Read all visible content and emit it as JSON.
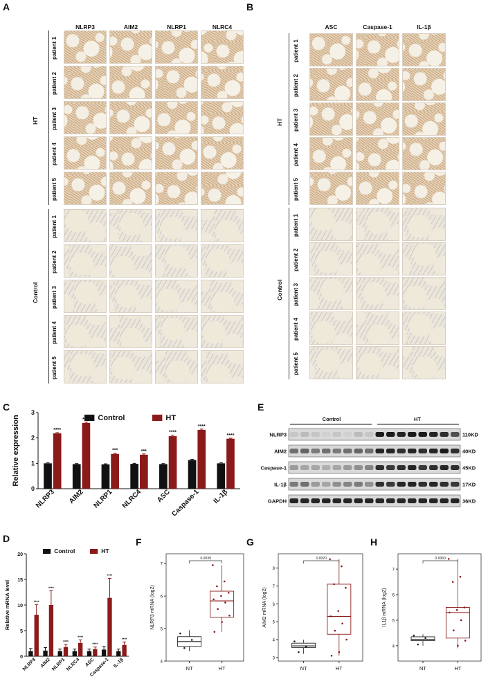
{
  "panels": {
    "a": "A",
    "b": "B",
    "c": "C",
    "d": "D",
    "e": "E",
    "f": "F",
    "g": "G",
    "h": "H"
  },
  "panel_a": {
    "columns": [
      "NLRP3",
      "AIM2",
      "NLRP1",
      "NLRC4"
    ],
    "groups": [
      "HT",
      "Control"
    ],
    "rows": [
      "patient 1",
      "patient 2",
      "patient 3",
      "patient 4",
      "patient 5"
    ]
  },
  "panel_b": {
    "columns": [
      "ASC",
      "Caspase-1",
      "IL-1β"
    ],
    "groups": [
      "HT",
      "Control"
    ],
    "rows": [
      "patient 1",
      "patient 2",
      "patient 3",
      "patient 4",
      "patient 5"
    ]
  },
  "panel_e": {
    "group_labels": [
      "Control",
      "HT"
    ],
    "rows": [
      {
        "name": "NLRP3",
        "size": "110KD"
      },
      {
        "name": "AIM2",
        "size": "40KD"
      },
      {
        "name": "Caspase-1",
        "size": "45KD"
      },
      {
        "name": "IL-1β",
        "size": "17KD"
      },
      {
        "name": "GAPDH",
        "size": "36KD"
      }
    ]
  },
  "chart_data": [
    {
      "id": "C",
      "type": "bar",
      "categories": [
        "NLRP3",
        "AIM2",
        "NLRP1",
        "NLRC4",
        "ASC",
        "Caspase-1",
        "IL-1β"
      ],
      "series": [
        {
          "name": "Control",
          "values": [
            1.0,
            0.97,
            0.96,
            0.98,
            0.97,
            1.13,
            1.0
          ],
          "errors": [
            0.02,
            0.02,
            0.02,
            0.02,
            0.02,
            0.03,
            0.02
          ],
          "color": "#111111"
        },
        {
          "name": "HT",
          "values": [
            2.18,
            2.59,
            1.37,
            1.34,
            2.07,
            2.32,
            1.97
          ],
          "errors": [
            0.03,
            0.03,
            0.03,
            0.03,
            0.04,
            0.03,
            0.02
          ],
          "color": "#8b1a1a"
        }
      ],
      "significance": [
        "****",
        "****",
        "***",
        "***",
        "****",
        "****",
        "****"
      ],
      "ylabel": "Relative expression",
      "ylim": [
        0,
        3
      ],
      "yticks": [
        0,
        1,
        2,
        3
      ]
    },
    {
      "id": "D",
      "type": "bar",
      "categories": [
        "NLRP3",
        "AIM2",
        "NLRP1",
        "NLRC4",
        "ASC",
        "Caspase-1",
        "IL-1β"
      ],
      "series": [
        {
          "name": "Control",
          "values": [
            1.0,
            1.1,
            1.0,
            1.0,
            1.0,
            1.3,
            1.0
          ],
          "errors": [
            0.5,
            0.6,
            0.4,
            0.4,
            0.4,
            0.6,
            0.4
          ],
          "color": "#111111"
        },
        {
          "name": "HT",
          "values": [
            8.1,
            10.0,
            1.8,
            2.6,
            1.4,
            11.4,
            2.2
          ],
          "errors": [
            2.0,
            2.8,
            0.5,
            0.6,
            0.4,
            3.8,
            0.6
          ],
          "color": "#8b1a1a"
        }
      ],
      "significance": [
        "****",
        "****",
        "****",
        "****",
        "****",
        "****",
        "****"
      ],
      "ylabel": "Relative mRNA level",
      "ylim": [
        0,
        20
      ],
      "yticks": [
        0,
        5,
        10,
        15,
        20
      ]
    },
    {
      "id": "F",
      "type": "box",
      "categories": [
        "NT",
        "HT"
      ],
      "ylabel": "NLRP3 mRNA (log2)",
      "pvalue": "0.0039",
      "ylim": [
        4,
        7.3
      ],
      "yticks": [
        4,
        5,
        6,
        7
      ],
      "boxes": [
        {
          "q1": 4.45,
          "median": 4.6,
          "q3": 4.75,
          "min": 4.3,
          "max": 4.95,
          "points": [
            4.85,
            4.65,
            4.4
          ],
          "color": "#222222"
        },
        {
          "q1": 5.35,
          "median": 5.85,
          "q3": 6.15,
          "min": 4.9,
          "max": 6.95,
          "points": [
            6.95,
            6.45,
            6.3,
            6.1,
            6.0,
            5.9,
            5.8,
            5.6,
            5.4,
            5.2,
            4.9
          ],
          "color": "#8b1a1a"
        }
      ]
    },
    {
      "id": "G",
      "type": "box",
      "categories": [
        "NT",
        "HT"
      ],
      "ylabel": "AIM2 mRNA (log2)",
      "pvalue": "0.0020",
      "ylim": [
        2.8,
        8.8
      ],
      "yticks": [
        3,
        4,
        5,
        6,
        7,
        8
      ],
      "boxes": [
        {
          "q1": 3.55,
          "median": 3.65,
          "q3": 3.8,
          "min": 3.2,
          "max": 4.0,
          "points": [
            3.9,
            3.6,
            3.3
          ],
          "color": "#222222"
        },
        {
          "q1": 4.3,
          "median": 5.3,
          "q3": 7.1,
          "min": 3.1,
          "max": 8.5,
          "points": [
            8.5,
            8.1,
            7.1,
            6.9,
            5.6,
            5.3,
            4.9,
            4.5,
            4.0,
            3.3,
            3.1
          ],
          "color": "#8b1a1a"
        }
      ]
    },
    {
      "id": "H",
      "type": "box",
      "categories": [
        "NT",
        "HT"
      ],
      "ylabel": "IL1β mRNA (log2)",
      "pvalue": "0.0060",
      "ylim": [
        3.4,
        7.6
      ],
      "yticks": [
        4,
        5,
        6,
        7
      ],
      "boxes": [
        {
          "q1": 4.2,
          "median": 4.25,
          "q3": 4.35,
          "min": 4.0,
          "max": 4.45,
          "points": [
            4.4,
            4.3,
            4.05
          ],
          "color": "#222222"
        },
        {
          "q1": 4.3,
          "median": 5.3,
          "q3": 5.5,
          "min": 3.9,
          "max": 7.4,
          "points": [
            7.4,
            6.7,
            6.5,
            5.5,
            5.4,
            5.3,
            5.0,
            4.6,
            4.2,
            4.0
          ],
          "color": "#8b1a1a"
        }
      ]
    }
  ]
}
